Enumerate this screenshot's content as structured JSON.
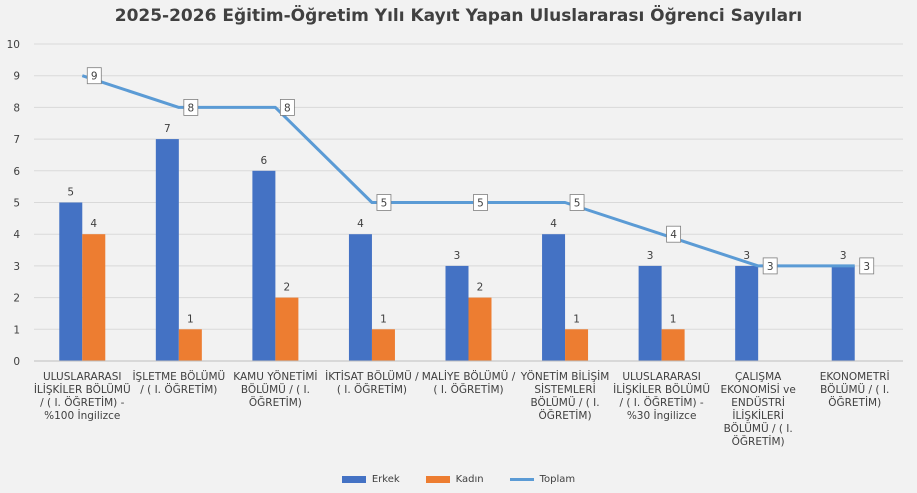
{
  "chart_data": {
    "type": "bar",
    "title": "2025-2026 Eğitim-Öğretim Yılı Kayıt Yapan Uluslararası Öğrenci Sayıları",
    "categories": [
      "ULUSLARARASI İLİŞKİLER BÖLÜMÜ / ( I. ÖĞRETİM) - %100 İngilizce",
      "İŞLETME BÖLÜMÜ / ( I. ÖĞRETİM)",
      "KAMU YÖNETİMİ BÖLÜMÜ / ( I. ÖĞRETİM)",
      "İKTİSAT BÖLÜMÜ / ( I. ÖĞRETİM)",
      "MALİYE BÖLÜMÜ / ( I. ÖĞRETİM)",
      "YÖNETİM BİLİŞİM SİSTEMLERİ BÖLÜMÜ / ( I. ÖĞRETİM)",
      "ULUSLARARASI İLİŞKİLER BÖLÜMÜ / ( I. ÖĞRETİM) - %30 İngilizce",
      "ÇALIŞMA EKONOMİSİ ve ENDÜSTRİ İLİŞKİLERİ BÖLÜMÜ / ( I. ÖĞRETİM)",
      "EKONOMETRİ BÖLÜMÜ / ( I. ÖĞRETİM)"
    ],
    "series": [
      {
        "name": "Erkek",
        "kind": "bar",
        "color": "#4472c4",
        "values": [
          5,
          7,
          6,
          4,
          3,
          4,
          3,
          3,
          3
        ]
      },
      {
        "name": "Kadın",
        "kind": "bar",
        "color": "#ed7d31",
        "values": [
          4,
          1,
          2,
          1,
          2,
          1,
          1,
          null,
          null
        ]
      },
      {
        "name": "Toplam",
        "kind": "line",
        "color": "#5b9bd5",
        "values": [
          9,
          8,
          8,
          5,
          5,
          5,
          4,
          3,
          3
        ]
      }
    ],
    "ylim": [
      0,
      10
    ],
    "yticks": [
      0,
      1,
      2,
      3,
      4,
      5,
      6,
      7,
      8,
      9,
      10
    ],
    "grid": true,
    "legend": "bottom"
  }
}
